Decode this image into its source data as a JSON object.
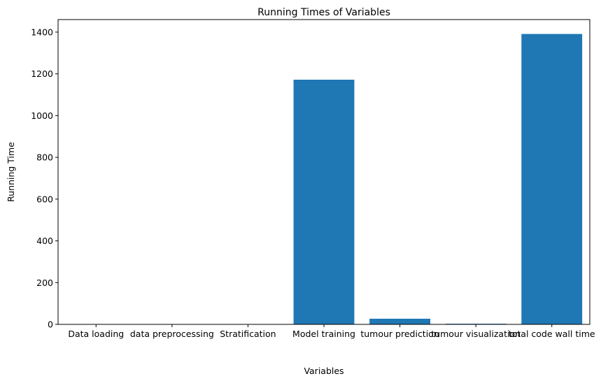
{
  "chart_data": {
    "type": "bar",
    "title": "Running Times of Variables",
    "xlabel": "Variables",
    "ylabel": "Running Time",
    "categories": [
      "Data loading",
      "data preprocessing",
      "Stratification",
      "Model training",
      "tumour prediction",
      "tumour visualization",
      "total code wall time"
    ],
    "values": [
      0.5,
      0.8,
      0.5,
      1172,
      27,
      3,
      1391
    ],
    "ylim": [
      0,
      1460
    ],
    "yticks": [
      0,
      200,
      400,
      600,
      800,
      1000,
      1200,
      1400
    ],
    "grid": false,
    "bar_color": "#1f77b4"
  }
}
